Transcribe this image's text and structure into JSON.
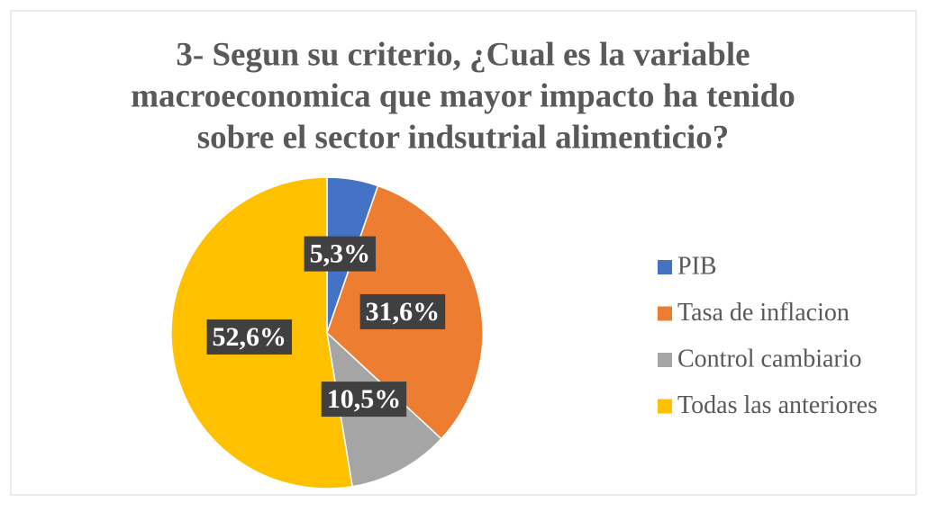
{
  "chart_data": {
    "type": "pie",
    "title": [
      "3- Segun su criterio, ¿Cual es la variable",
      "macroeconomica que mayor impacto ha tenido",
      "sobre el sector indsutrial alimenticio?"
    ],
    "categories": [
      "PIB",
      "Tasa de inflacion",
      "Control cambiario",
      "Todas las anteriores"
    ],
    "values": [
      5.3,
      31.6,
      10.5,
      52.6
    ],
    "value_labels": [
      "5,3%",
      "31,6%",
      "10,5%",
      "52,6%"
    ],
    "colors": [
      "#4472c4",
      "#ed7d31",
      "#a5a5a5",
      "#ffc000"
    ],
    "legend": "right"
  }
}
